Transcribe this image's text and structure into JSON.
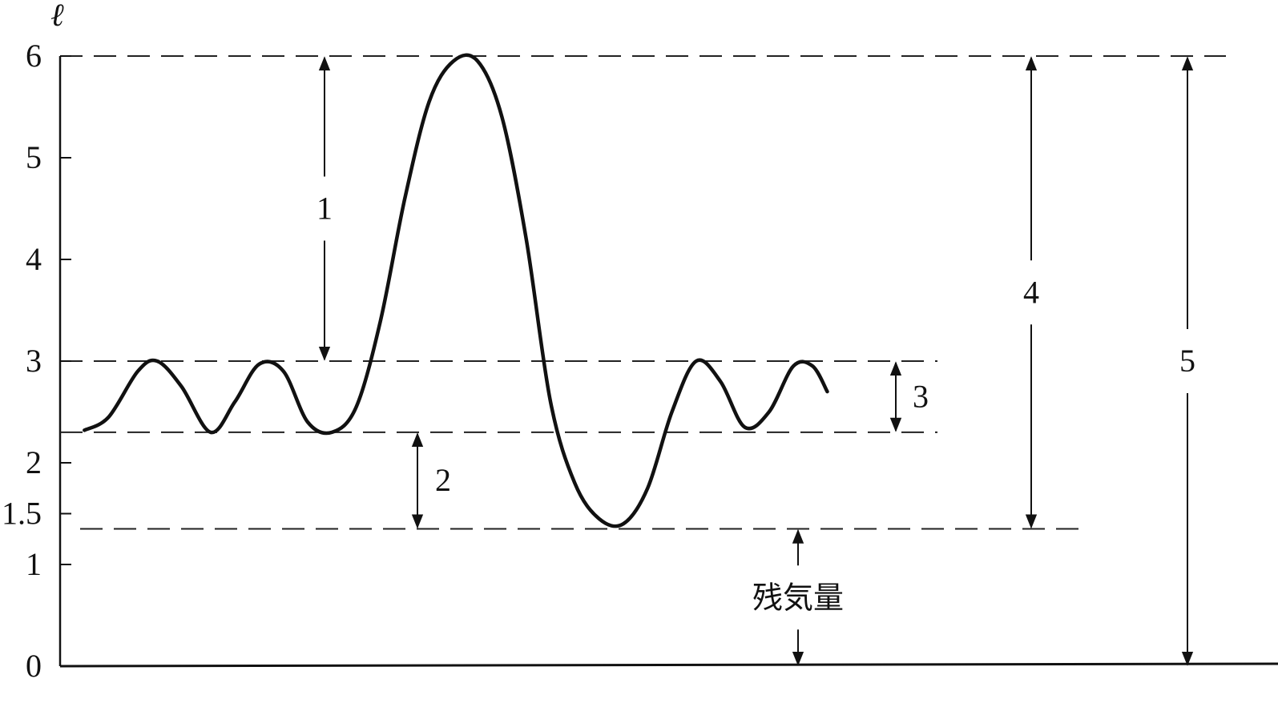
{
  "chart_data": {
    "type": "line",
    "ylabel": "ℓ",
    "xlabel": "",
    "title": "",
    "ylim": [
      0,
      6
    ],
    "y_ticks": [
      {
        "value": 0,
        "label": "0"
      },
      {
        "value": 1,
        "label": "1"
      },
      {
        "value": 1.5,
        "label": "1.5"
      },
      {
        "value": 2,
        "label": "2"
      },
      {
        "value": 3,
        "label": "3"
      },
      {
        "value": 4,
        "label": "4"
      },
      {
        "value": 5,
        "label": "5"
      },
      {
        "value": 6,
        "label": "6"
      }
    ],
    "grid": false,
    "reference_lines": [
      {
        "y": 6.0
      },
      {
        "y": 3.0
      },
      {
        "y": 2.3
      },
      {
        "y": 1.35
      }
    ],
    "series": [
      {
        "points": [
          [
            0.5,
            2.32
          ],
          [
            1.0,
            2.45
          ],
          [
            1.6,
            2.9
          ],
          [
            2.0,
            3.0
          ],
          [
            2.5,
            2.75
          ],
          [
            3.1,
            2.3
          ],
          [
            3.6,
            2.6
          ],
          [
            4.1,
            2.97
          ],
          [
            4.6,
            2.9
          ],
          [
            5.1,
            2.4
          ],
          [
            5.6,
            2.3
          ],
          [
            6.1,
            2.55
          ],
          [
            6.6,
            3.4
          ],
          [
            7.1,
            4.6
          ],
          [
            7.6,
            5.55
          ],
          [
            8.1,
            5.95
          ],
          [
            8.6,
            5.95
          ],
          [
            9.1,
            5.4
          ],
          [
            9.6,
            4.2
          ],
          [
            10.1,
            2.6
          ],
          [
            10.6,
            1.8
          ],
          [
            11.1,
            1.45
          ],
          [
            11.6,
            1.4
          ],
          [
            12.1,
            1.75
          ],
          [
            12.6,
            2.5
          ],
          [
            13.1,
            3.0
          ],
          [
            13.6,
            2.8
          ],
          [
            14.1,
            2.35
          ],
          [
            14.6,
            2.5
          ],
          [
            15.1,
            2.95
          ],
          [
            15.5,
            2.95
          ],
          [
            15.8,
            2.7
          ]
        ]
      }
    ],
    "annotations": [
      {
        "label": "1",
        "from": 6.0,
        "to": 3.0
      },
      {
        "label": "2",
        "from": 2.3,
        "to": 1.35
      },
      {
        "label": "3",
        "from": 3.0,
        "to": 2.3
      },
      {
        "label": "4",
        "from": 6.0,
        "to": 1.35
      },
      {
        "label": "5",
        "from": 6.0,
        "to": 0
      },
      {
        "label": "残気量",
        "from": 1.35,
        "to": 0
      }
    ]
  }
}
